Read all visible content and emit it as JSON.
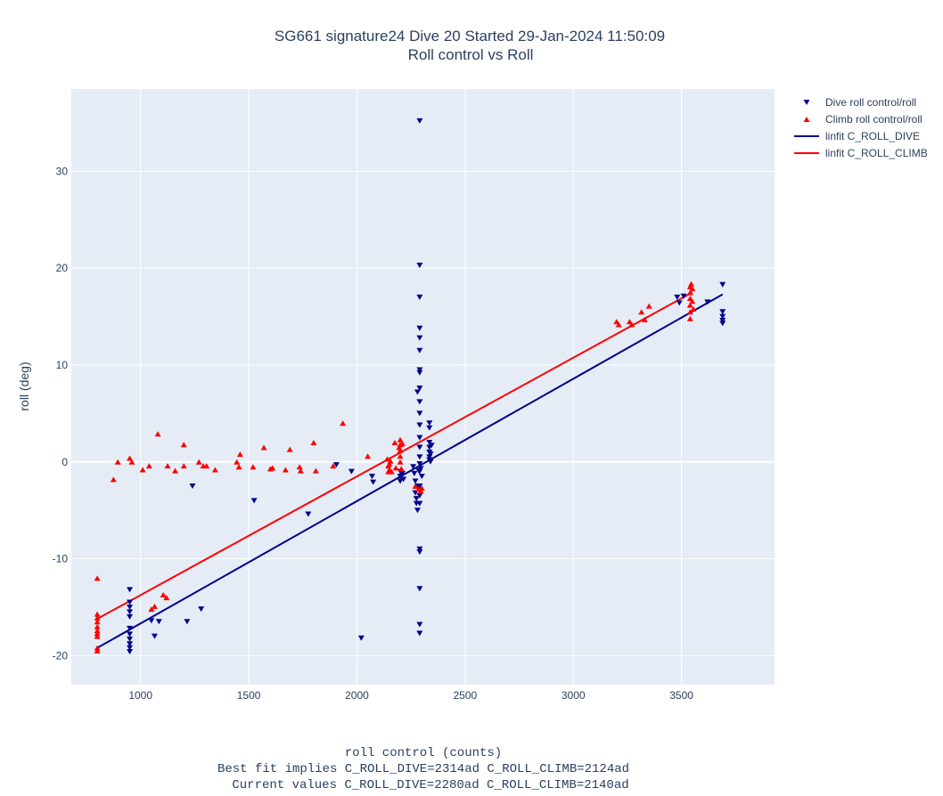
{
  "chart_data": {
    "type": "scatter",
    "title": "SG661 signature24 Dive 20 Started 29-Jan-2024 11:50:09",
    "subtitle": "Roll control vs Roll",
    "xlabel_lines": [
      "roll control (counts)",
      "Best fit implies C_ROLL_DIVE=2314ad C_ROLL_CLIMB=2124ad",
      "Current values C_ROLL_DIVE=2280ad C_ROLL_CLIMB=2140ad"
    ],
    "ylabel": "roll (deg)",
    "xlim": [
      680,
      3930
    ],
    "ylim": [
      -23,
      38.5
    ],
    "x_ticks": [
      1000,
      1500,
      2000,
      2500,
      3000,
      3500
    ],
    "y_ticks": [
      -20,
      -10,
      0,
      10,
      20,
      30
    ],
    "grid": true,
    "legend_position": "top-right outside",
    "colors": {
      "plot_bg": "#e5ecf6",
      "grid": "#ffffff",
      "dive": "#00008b",
      "climb": "#ff0000",
      "text": "#2a3f5f"
    },
    "series": [
      {
        "name": "Dive roll control/roll",
        "kind": "markers",
        "marker": "triangle-down",
        "color": "#00008b",
        "points": [
          [
            950,
            -13.2
          ],
          [
            950,
            -14.5
          ],
          [
            950,
            -15.0
          ],
          [
            950,
            -15.5
          ],
          [
            950,
            -16.0
          ],
          [
            950,
            -17.2
          ],
          [
            950,
            -17.8
          ],
          [
            950,
            -18.3
          ],
          [
            950,
            -18.8
          ],
          [
            950,
            -19.2
          ],
          [
            950,
            -19.6
          ],
          [
            1050,
            -16.4
          ],
          [
            1065,
            -18.0
          ],
          [
            1085,
            -16.5
          ],
          [
            1215,
            -16.5
          ],
          [
            1240,
            -2.5
          ],
          [
            1280,
            -15.2
          ],
          [
            1525,
            -4.0
          ],
          [
            1775,
            -5.4
          ],
          [
            1905,
            -0.3
          ],
          [
            1975,
            -1.0
          ],
          [
            2020,
            -18.2
          ],
          [
            2070,
            -1.5
          ],
          [
            2075,
            -2.1
          ],
          [
            2200,
            -1.0
          ],
          [
            2200,
            -1.5
          ],
          [
            2200,
            -2.0
          ],
          [
            2210,
            -1.2
          ],
          [
            2215,
            -1.8
          ],
          [
            2260,
            -0.5
          ],
          [
            2265,
            -1.2
          ],
          [
            2270,
            -2.0
          ],
          [
            2270,
            -3.2
          ],
          [
            2275,
            -3.8
          ],
          [
            2275,
            -4.3
          ],
          [
            2280,
            -5.0
          ],
          [
            2280,
            -2.5
          ],
          [
            2285,
            -0.9
          ],
          [
            2290,
            35.2
          ],
          [
            2290,
            20.3
          ],
          [
            2290,
            17.0
          ],
          [
            2290,
            13.8
          ],
          [
            2290,
            12.8
          ],
          [
            2290,
            11.5
          ],
          [
            2290,
            9.5
          ],
          [
            2290,
            9.2
          ],
          [
            2290,
            7.6
          ],
          [
            2290,
            6.2
          ],
          [
            2290,
            5.0
          ],
          [
            2290,
            3.8
          ],
          [
            2290,
            2.5
          ],
          [
            2290,
            1.5
          ],
          [
            2290,
            0.5
          ],
          [
            2290,
            -0.2
          ],
          [
            2290,
            -1.0
          ],
          [
            2290,
            -2.5
          ],
          [
            2290,
            -3.5
          ],
          [
            2290,
            -4.3
          ],
          [
            2290,
            -9.0
          ],
          [
            2290,
            -9.3
          ],
          [
            2290,
            -13.1
          ],
          [
            2290,
            -16.8
          ],
          [
            2290,
            -17.7
          ],
          [
            2280,
            7.2
          ],
          [
            2295,
            -0.7
          ],
          [
            2300,
            -1.5
          ],
          [
            2335,
            4.0
          ],
          [
            2335,
            3.5
          ],
          [
            2335,
            2.0
          ],
          [
            2335,
            1.5
          ],
          [
            2335,
            1.0
          ],
          [
            2335,
            0.5
          ],
          [
            2335,
            0.2
          ],
          [
            2340,
            0.0
          ],
          [
            2340,
            0.8
          ],
          [
            2345,
            1.7
          ],
          [
            3480,
            17.0
          ],
          [
            3490,
            16.4
          ],
          [
            3510,
            17.1
          ],
          [
            3620,
            16.5
          ],
          [
            3690,
            18.3
          ],
          [
            3690,
            15.5
          ],
          [
            3690,
            15.0
          ],
          [
            3690,
            14.6
          ],
          [
            3690,
            14.3
          ]
        ]
      },
      {
        "name": "Climb roll control/roll",
        "kind": "markers",
        "marker": "triangle-up",
        "color": "#ff0000",
        "points": [
          [
            800,
            -12.0
          ],
          [
            800,
            -15.7
          ],
          [
            800,
            -16.1
          ],
          [
            800,
            -16.5
          ],
          [
            800,
            -17.0
          ],
          [
            800,
            -17.4
          ],
          [
            800,
            -17.7
          ],
          [
            800,
            -18.0
          ],
          [
            800,
            -19.2
          ],
          [
            800,
            -19.5
          ],
          [
            875,
            -1.8
          ],
          [
            895,
            0.0
          ],
          [
            950,
            0.4
          ],
          [
            960,
            0.0
          ],
          [
            1010,
            -0.8
          ],
          [
            1040,
            -0.4
          ],
          [
            1050,
            -15.2
          ],
          [
            1065,
            -14.9
          ],
          [
            1080,
            2.9
          ],
          [
            1105,
            -13.7
          ],
          [
            1120,
            -14.0
          ],
          [
            1125,
            -0.4
          ],
          [
            1160,
            -0.9
          ],
          [
            1200,
            1.8
          ],
          [
            1200,
            -0.4
          ],
          [
            1270,
            0.0
          ],
          [
            1290,
            -0.4
          ],
          [
            1305,
            -0.4
          ],
          [
            1345,
            -0.8
          ],
          [
            1445,
            0.0
          ],
          [
            1460,
            0.8
          ],
          [
            1455,
            -0.5
          ],
          [
            1520,
            -0.5
          ],
          [
            1570,
            1.5
          ],
          [
            1600,
            -0.7
          ],
          [
            1610,
            -0.6
          ],
          [
            1670,
            -0.8
          ],
          [
            1690,
            1.3
          ],
          [
            1735,
            -0.5
          ],
          [
            1740,
            -0.9
          ],
          [
            1800,
            2.0
          ],
          [
            1810,
            -0.9
          ],
          [
            1890,
            -0.4
          ],
          [
            1935,
            4.0
          ],
          [
            2050,
            0.6
          ],
          [
            2140,
            0.3
          ],
          [
            2145,
            -0.4
          ],
          [
            2145,
            -1.0
          ],
          [
            2150,
            -0.8
          ],
          [
            2150,
            -0.2
          ],
          [
            2155,
            0.1
          ],
          [
            2160,
            -1.0
          ],
          [
            2175,
            2.0
          ],
          [
            2180,
            -0.6
          ],
          [
            2195,
            1.5
          ],
          [
            2200,
            2.3
          ],
          [
            2200,
            1.8
          ],
          [
            2200,
            1.2
          ],
          [
            2200,
            0.6
          ],
          [
            2200,
            0.0
          ],
          [
            2205,
            -0.7
          ],
          [
            2210,
            1.9
          ],
          [
            2270,
            -2.5
          ],
          [
            2285,
            -2.8
          ],
          [
            2295,
            -3.0
          ],
          [
            2300,
            -2.7
          ],
          [
            3200,
            14.5
          ],
          [
            3210,
            14.2
          ],
          [
            3260,
            14.5
          ],
          [
            3270,
            14.2
          ],
          [
            3315,
            15.5
          ],
          [
            3330,
            14.7
          ],
          [
            3350,
            16.1
          ],
          [
            3540,
            18.1
          ],
          [
            3540,
            17.5
          ],
          [
            3540,
            16.9
          ],
          [
            3540,
            16.2
          ],
          [
            3540,
            15.5
          ],
          [
            3540,
            14.8
          ],
          [
            3545,
            18.4
          ],
          [
            3550,
            17.9
          ],
          [
            3550,
            16.6
          ],
          [
            3555,
            15.8
          ]
        ]
      },
      {
        "name": "linfit C_ROLL_DIVE",
        "kind": "line",
        "color": "#00008b",
        "points": [
          [
            800,
            -19.2
          ],
          [
            3690,
            17.3
          ]
        ]
      },
      {
        "name": "linfit C_ROLL_CLIMB",
        "kind": "line",
        "color": "#ff0000",
        "points": [
          [
            800,
            -16.2
          ],
          [
            3550,
            17.5
          ]
        ]
      }
    ]
  }
}
